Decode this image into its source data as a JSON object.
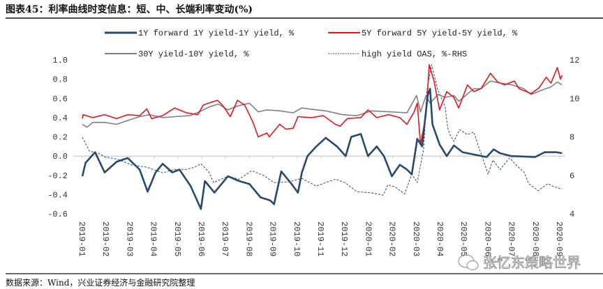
{
  "title": "图表45：利率曲线时变信息：短、中、长端利率变动(%)",
  "source": "数据来源：Wind，兴业证券经济与金融研究院整理",
  "watermark": "张忆东策略世界",
  "chart_data": {
    "type": "line",
    "title": "图表45：利率曲线时变信息：短、中、长端利率变动(%)",
    "xlabel": "",
    "ylabel": "",
    "ylim": [
      -0.6,
      1.0
    ],
    "y_ticks": [
      "1.0",
      "0.8",
      "0.6",
      "0.4",
      "0.2",
      "0.0",
      "-0.2",
      "-0.4",
      "-0.6"
    ],
    "y2lim": [
      4,
      12
    ],
    "y2_ticks": [
      "12",
      "10",
      "8",
      "6",
      "4"
    ],
    "x_ticks": [
      "2019-01",
      "2019-02",
      "2019-03",
      "2019-04",
      "2019-05",
      "2019-06",
      "2019-07",
      "2019-08",
      "2019-09",
      "2019-10",
      "2019-11",
      "2019-12",
      "2020-01",
      "2020-02",
      "2020-03",
      "2020-04",
      "2020-05",
      "2020-06",
      "2020-07",
      "2020-08",
      "2020-09"
    ],
    "grid": false,
    "legend_position": "top",
    "series": [
      {
        "name": "1Y forward 1Y yield-1Y yield, %",
        "axis": "left",
        "color": "#264a6e",
        "style": "solid-thick",
        "points": [
          [
            "2019-01-01",
            -0.21
          ],
          [
            "2019-01-05",
            -0.07
          ],
          [
            "2019-01-17",
            0.04
          ],
          [
            "2019-01-29",
            -0.17
          ],
          [
            "2019-02-14",
            -0.06
          ],
          [
            "2019-02-28",
            -0.02
          ],
          [
            "2019-03-13",
            -0.14
          ],
          [
            "2019-03-23",
            -0.37
          ],
          [
            "2019-04-03",
            -0.17
          ],
          [
            "2019-04-12",
            -0.08
          ],
          [
            "2019-04-24",
            -0.17
          ],
          [
            "2019-05-03",
            -0.14
          ],
          [
            "2019-05-17",
            -0.31
          ],
          [
            "2019-05-30",
            -0.55
          ],
          [
            "2019-06-05",
            -0.26
          ],
          [
            "2019-06-17",
            -0.38
          ],
          [
            "2019-07-04",
            -0.21
          ],
          [
            "2019-07-18",
            -0.26
          ],
          [
            "2019-07-31",
            -0.29
          ],
          [
            "2019-08-15",
            -0.43
          ],
          [
            "2019-08-27",
            -0.46
          ],
          [
            "2019-09-02",
            -0.5
          ],
          [
            "2019-09-11",
            -0.16
          ],
          [
            "2019-09-23",
            -0.28
          ],
          [
            "2019-10-02",
            -0.38
          ],
          [
            "2019-10-07",
            -0.17
          ],
          [
            "2019-10-14",
            0.0
          ],
          [
            "2019-10-25",
            0.1
          ],
          [
            "2019-11-07",
            0.19
          ],
          [
            "2019-11-21",
            0.1
          ],
          [
            "2019-12-02",
            0.0
          ],
          [
            "2019-12-09",
            0.2
          ],
          [
            "2019-12-21",
            0.23
          ],
          [
            "2019-12-30",
            0.0
          ],
          [
            "2020-01-11",
            0.1
          ],
          [
            "2020-01-20",
            0.0
          ],
          [
            "2020-01-30",
            -0.21
          ],
          [
            "2020-02-10",
            -0.09
          ],
          [
            "2020-02-19",
            -0.14
          ],
          [
            "2020-02-25",
            -0.19
          ],
          [
            "2020-03-02",
            0.18
          ],
          [
            "2020-03-08",
            0.1
          ],
          [
            "2020-03-15",
            0.63
          ],
          [
            "2020-03-18",
            0.7
          ],
          [
            "2020-03-21",
            0.33
          ],
          [
            "2020-03-30",
            0.12
          ],
          [
            "2020-04-09",
            0.0
          ],
          [
            "2020-04-18",
            0.11
          ],
          [
            "2020-04-29",
            0.04
          ],
          [
            "2020-05-11",
            0.02
          ],
          [
            "2020-05-29",
            -0.01
          ],
          [
            "2020-06-08",
            0.07
          ],
          [
            "2020-06-16",
            0.03
          ],
          [
            "2020-06-30",
            0.0
          ],
          [
            "2020-07-30",
            -0.01
          ],
          [
            "2020-08-12",
            0.04
          ],
          [
            "2020-08-27",
            0.04
          ],
          [
            "2020-09-04",
            0.03
          ]
        ]
      },
      {
        "name": "5Y forward 5Y yield-5Y yield, %",
        "axis": "left",
        "color": "#e8141b",
        "style": "solid",
        "points": [
          [
            "2019-01-01",
            0.39
          ],
          [
            "2019-01-02",
            0.43
          ],
          [
            "2019-01-14",
            0.4
          ],
          [
            "2019-01-29",
            0.43
          ],
          [
            "2019-02-14",
            0.39
          ],
          [
            "2019-02-28",
            0.43
          ],
          [
            "2019-03-13",
            0.42
          ],
          [
            "2019-03-22",
            0.49
          ],
          [
            "2019-03-28",
            0.39
          ],
          [
            "2019-04-12",
            0.42
          ],
          [
            "2019-04-27",
            0.5
          ],
          [
            "2019-05-12",
            0.45
          ],
          [
            "2019-05-26",
            0.43
          ],
          [
            "2019-06-03",
            0.53
          ],
          [
            "2019-06-13",
            0.56
          ],
          [
            "2019-06-21",
            0.58
          ],
          [
            "2019-06-28",
            0.52
          ],
          [
            "2019-07-07",
            0.41
          ],
          [
            "2019-07-16",
            0.58
          ],
          [
            "2019-07-25",
            0.53
          ],
          [
            "2019-08-01",
            0.43
          ],
          [
            "2019-08-06",
            0.34
          ],
          [
            "2019-08-12",
            0.2
          ],
          [
            "2019-08-23",
            0.24
          ],
          [
            "2019-08-26",
            0.2
          ],
          [
            "2019-09-09",
            0.33
          ],
          [
            "2019-09-17",
            0.28
          ],
          [
            "2019-09-26",
            0.29
          ],
          [
            "2019-10-02",
            0.41
          ],
          [
            "2019-10-19",
            0.4
          ],
          [
            "2019-11-04",
            0.42
          ],
          [
            "2019-11-19",
            0.33
          ],
          [
            "2019-11-25",
            0.31
          ],
          [
            "2019-12-04",
            0.39
          ],
          [
            "2019-12-21",
            0.4
          ],
          [
            "2019-12-30",
            0.48
          ],
          [
            "2020-01-11",
            0.4
          ],
          [
            "2020-01-26",
            0.43
          ],
          [
            "2020-02-10",
            0.4
          ],
          [
            "2020-02-19",
            0.33
          ],
          [
            "2020-02-28",
            0.46
          ],
          [
            "2020-03-02",
            0.55
          ],
          [
            "2020-03-06",
            0.12
          ],
          [
            "2020-03-13",
            0.43
          ],
          [
            "2020-03-17",
            0.95
          ],
          [
            "2020-03-23",
            0.78
          ],
          [
            "2020-03-30",
            0.48
          ],
          [
            "2020-04-09",
            0.67
          ],
          [
            "2020-04-18",
            0.61
          ],
          [
            "2020-04-24",
            0.5
          ],
          [
            "2020-05-05",
            0.74
          ],
          [
            "2020-05-13",
            0.67
          ],
          [
            "2020-05-22",
            0.7
          ],
          [
            "2020-06-04",
            0.86
          ],
          [
            "2020-06-13",
            0.77
          ],
          [
            "2020-06-22",
            0.74
          ],
          [
            "2020-07-04",
            0.78
          ],
          [
            "2020-07-10",
            0.7
          ],
          [
            "2020-07-25",
            0.65
          ],
          [
            "2020-08-05",
            0.71
          ],
          [
            "2020-08-14",
            0.82
          ],
          [
            "2020-08-20",
            0.76
          ],
          [
            "2020-08-28",
            0.92
          ],
          [
            "2020-09-02",
            0.8
          ],
          [
            "2020-09-04",
            0.84
          ]
        ]
      },
      {
        "name": "30Y yield-10Y yield, %",
        "axis": "left",
        "color": "#808080",
        "style": "solid",
        "points": [
          [
            "2019-01-01",
            0.33
          ],
          [
            "2019-01-07",
            0.3
          ],
          [
            "2019-01-14",
            0.35
          ],
          [
            "2019-01-29",
            0.35
          ],
          [
            "2019-02-14",
            0.33
          ],
          [
            "2019-02-28",
            0.37
          ],
          [
            "2019-03-13",
            0.41
          ],
          [
            "2019-03-25",
            0.43
          ],
          [
            "2019-04-12",
            0.4
          ],
          [
            "2019-04-27",
            0.41
          ],
          [
            "2019-05-16",
            0.42
          ],
          [
            "2019-05-28",
            0.46
          ],
          [
            "2019-06-10",
            0.51
          ],
          [
            "2019-06-22",
            0.54
          ],
          [
            "2019-07-04",
            0.48
          ],
          [
            "2019-07-16",
            0.52
          ],
          [
            "2019-08-01",
            0.55
          ],
          [
            "2019-08-12",
            0.46
          ],
          [
            "2019-08-23",
            0.48
          ],
          [
            "2019-09-09",
            0.47
          ],
          [
            "2019-09-26",
            0.45
          ],
          [
            "2019-10-07",
            0.5
          ],
          [
            "2019-10-25",
            0.48
          ],
          [
            "2019-11-07",
            0.47
          ],
          [
            "2019-11-28",
            0.43
          ],
          [
            "2019-12-16",
            0.42
          ],
          [
            "2020-01-04",
            0.47
          ],
          [
            "2020-01-28",
            0.46
          ],
          [
            "2020-02-19",
            0.45
          ],
          [
            "2020-03-01",
            0.63
          ],
          [
            "2020-03-06",
            0.46
          ],
          [
            "2020-03-13",
            0.63
          ],
          [
            "2020-03-18",
            0.55
          ],
          [
            "2020-03-28",
            0.64
          ],
          [
            "2020-04-07",
            0.61
          ],
          [
            "2020-04-18",
            0.63
          ],
          [
            "2020-04-24",
            0.57
          ],
          [
            "2020-05-13",
            0.7
          ],
          [
            "2020-05-22",
            0.7
          ],
          [
            "2020-06-04",
            0.78
          ],
          [
            "2020-06-16",
            0.76
          ],
          [
            "2020-07-01",
            0.74
          ],
          [
            "2020-07-16",
            0.7
          ],
          [
            "2020-07-25",
            0.64
          ],
          [
            "2020-08-10",
            0.69
          ],
          [
            "2020-08-20",
            0.72
          ],
          [
            "2020-08-28",
            0.77
          ],
          [
            "2020-09-04",
            0.74
          ]
        ]
      },
      {
        "name": "high yield OAS, %-RHS",
        "axis": "right",
        "color": "#2b4a7a",
        "style": "dashed",
        "points": [
          [
            "2019-01-01",
            7.98
          ],
          [
            "2019-01-10",
            7.25
          ],
          [
            "2019-01-22",
            7.14
          ],
          [
            "2019-01-29",
            6.96
          ],
          [
            "2019-02-14",
            6.85
          ],
          [
            "2019-03-04",
            6.53
          ],
          [
            "2019-03-22",
            6.42
          ],
          [
            "2019-04-12",
            6.13
          ],
          [
            "2019-04-27",
            6.31
          ],
          [
            "2019-05-12",
            6.31
          ],
          [
            "2019-05-22",
            6.42
          ],
          [
            "2019-05-30",
            6.6
          ],
          [
            "2019-06-10",
            6.17
          ],
          [
            "2019-06-16",
            5.62
          ],
          [
            "2019-07-04",
            5.95
          ],
          [
            "2019-07-18",
            5.8
          ],
          [
            "2019-08-04",
            6.24
          ],
          [
            "2019-08-19",
            5.99
          ],
          [
            "2019-09-02",
            5.62
          ],
          [
            "2019-09-20",
            5.66
          ],
          [
            "2019-10-07",
            5.84
          ],
          [
            "2019-10-25",
            5.44
          ],
          [
            "2019-11-07",
            5.62
          ],
          [
            "2019-11-19",
            5.8
          ],
          [
            "2019-12-01",
            5.62
          ],
          [
            "2019-12-16",
            5.15
          ],
          [
            "2020-01-04",
            5.09
          ],
          [
            "2020-01-19",
            4.97
          ],
          [
            "2020-01-25",
            5.51
          ],
          [
            "2020-02-04",
            5.4
          ],
          [
            "2020-02-16",
            5.03
          ],
          [
            "2020-02-25",
            6.06
          ],
          [
            "2020-03-02",
            5.62
          ],
          [
            "2020-03-10",
            7.4
          ],
          [
            "2020-03-14",
            10.4
          ],
          [
            "2020-03-20",
            11.74
          ],
          [
            "2020-03-28",
            10.4
          ],
          [
            "2020-04-07",
            9.58
          ],
          [
            "2020-04-10",
            8.49
          ],
          [
            "2020-04-13",
            8.12
          ],
          [
            "2020-04-18",
            7.76
          ],
          [
            "2020-04-25",
            8.37
          ],
          [
            "2020-05-05",
            8.12
          ],
          [
            "2020-05-13",
            8.25
          ],
          [
            "2020-05-19",
            7.5
          ],
          [
            "2020-06-01",
            6.06
          ],
          [
            "2020-06-07",
            6.79
          ],
          [
            "2020-06-16",
            6.3
          ],
          [
            "2020-06-28",
            6.9
          ],
          [
            "2020-07-07",
            6.5
          ],
          [
            "2020-07-16",
            6.18
          ],
          [
            "2020-07-22",
            5.57
          ],
          [
            "2020-08-04",
            5.2
          ],
          [
            "2020-08-16",
            5.57
          ],
          [
            "2020-08-22",
            5.44
          ],
          [
            "2020-09-04",
            5.27
          ]
        ]
      }
    ]
  }
}
